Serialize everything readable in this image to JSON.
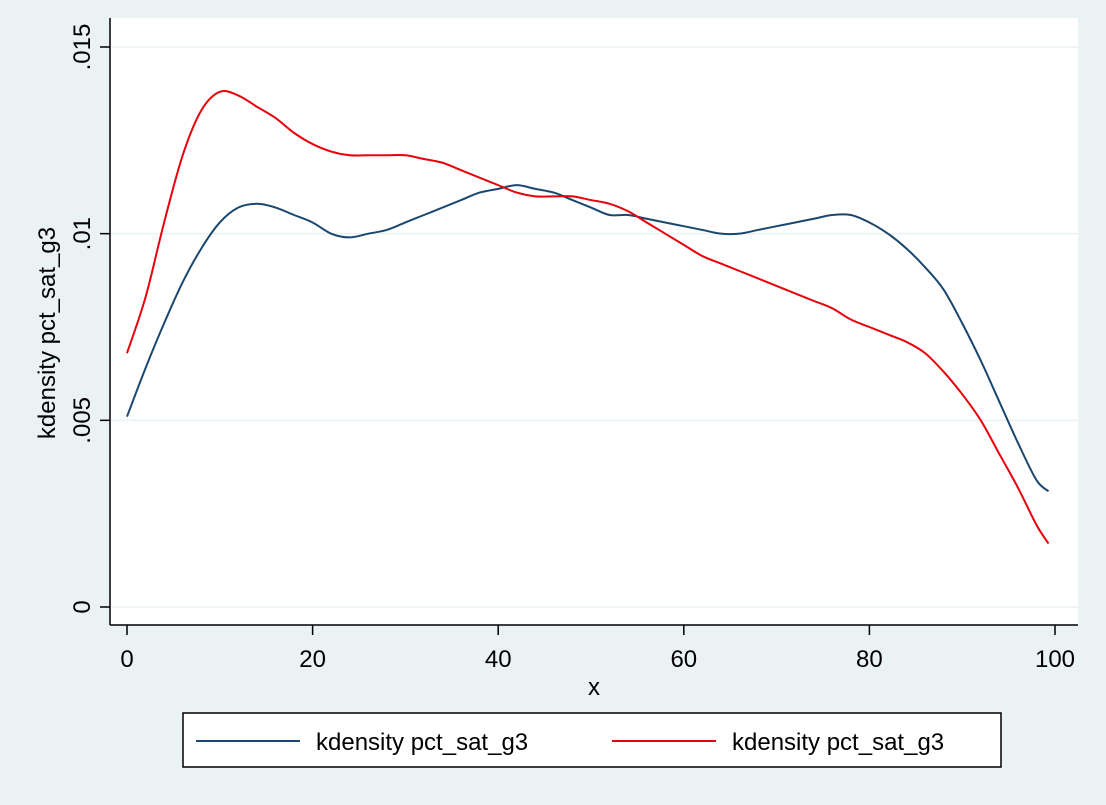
{
  "chart_data": {
    "type": "line",
    "title": "",
    "xlabel": "x",
    "ylabel": "kdensity pct_sat_g3",
    "xlim": [
      0,
      100
    ],
    "ylim": [
      0,
      0.015
    ],
    "x_ticks": [
      0,
      20,
      40,
      60,
      80,
      100
    ],
    "x_tick_labels": [
      "0",
      "20",
      "40",
      "60",
      "80",
      "100"
    ],
    "y_ticks": [
      0,
      0.005,
      0.01,
      0.015
    ],
    "y_tick_labels": [
      "0",
      ".005",
      ".01",
      ".015"
    ],
    "grid": "horizontal",
    "legend_position": "bottom",
    "series": [
      {
        "name": "kdensity pct_sat_g3",
        "color": "#1a476f",
        "points": [
          [
            0,
            0.0051
          ],
          [
            2,
            0.0064
          ],
          [
            4,
            0.0076
          ],
          [
            6,
            0.0087
          ],
          [
            8,
            0.0096
          ],
          [
            10,
            0.0103
          ],
          [
            12,
            0.0107
          ],
          [
            14,
            0.0108
          ],
          [
            16,
            0.0107
          ],
          [
            18,
            0.0105
          ],
          [
            20,
            0.0103
          ],
          [
            22,
            0.01
          ],
          [
            24,
            0.0099
          ],
          [
            26,
            0.01
          ],
          [
            28,
            0.0101
          ],
          [
            30,
            0.0103
          ],
          [
            32,
            0.0105
          ],
          [
            34,
            0.0107
          ],
          [
            36,
            0.0109
          ],
          [
            38,
            0.0111
          ],
          [
            40,
            0.0112
          ],
          [
            42,
            0.0113
          ],
          [
            44,
            0.0112
          ],
          [
            46,
            0.0111
          ],
          [
            48,
            0.0109
          ],
          [
            50,
            0.0107
          ],
          [
            52,
            0.0105
          ],
          [
            54,
            0.0105
          ],
          [
            56,
            0.0104
          ],
          [
            58,
            0.0103
          ],
          [
            60,
            0.0102
          ],
          [
            62,
            0.0101
          ],
          [
            64,
            0.01
          ],
          [
            66,
            0.01
          ],
          [
            68,
            0.0101
          ],
          [
            70,
            0.0102
          ],
          [
            72,
            0.0103
          ],
          [
            74,
            0.0104
          ],
          [
            76,
            0.0105
          ],
          [
            78,
            0.0105
          ],
          [
            80,
            0.0103
          ],
          [
            82,
            0.01
          ],
          [
            84,
            0.0096
          ],
          [
            86,
            0.0091
          ],
          [
            88,
            0.0085
          ],
          [
            90,
            0.0076
          ],
          [
            92,
            0.0066
          ],
          [
            94,
            0.0055
          ],
          [
            96,
            0.0044
          ],
          [
            98,
            0.0034
          ],
          [
            99.3,
            0.0031
          ]
        ]
      },
      {
        "name": "kdensity pct_sat_g3",
        "color": "#e8000b",
        "points": [
          [
            0,
            0.0068
          ],
          [
            2,
            0.0083
          ],
          [
            4,
            0.0103
          ],
          [
            6,
            0.0121
          ],
          [
            8,
            0.0133
          ],
          [
            10,
            0.0138
          ],
          [
            12,
            0.0137
          ],
          [
            14,
            0.0134
          ],
          [
            16,
            0.0131
          ],
          [
            18,
            0.0127
          ],
          [
            20,
            0.0124
          ],
          [
            22,
            0.0122
          ],
          [
            24,
            0.0121
          ],
          [
            26,
            0.0121
          ],
          [
            28,
            0.0121
          ],
          [
            30,
            0.0121
          ],
          [
            32,
            0.012
          ],
          [
            34,
            0.0119
          ],
          [
            36,
            0.0117
          ],
          [
            38,
            0.0115
          ],
          [
            40,
            0.0113
          ],
          [
            42,
            0.0111
          ],
          [
            44,
            0.011
          ],
          [
            46,
            0.011
          ],
          [
            48,
            0.011
          ],
          [
            50,
            0.0109
          ],
          [
            52,
            0.0108
          ],
          [
            54,
            0.0106
          ],
          [
            56,
            0.0103
          ],
          [
            58,
            0.01
          ],
          [
            60,
            0.0097
          ],
          [
            62,
            0.0094
          ],
          [
            64,
            0.0092
          ],
          [
            66,
            0.009
          ],
          [
            68,
            0.0088
          ],
          [
            70,
            0.0086
          ],
          [
            72,
            0.0084
          ],
          [
            74,
            0.0082
          ],
          [
            76,
            0.008
          ],
          [
            78,
            0.0077
          ],
          [
            80,
            0.0075
          ],
          [
            82,
            0.0073
          ],
          [
            84,
            0.0071
          ],
          [
            86,
            0.0068
          ],
          [
            88,
            0.0063
          ],
          [
            90,
            0.0057
          ],
          [
            92,
            0.005
          ],
          [
            94,
            0.0041
          ],
          [
            96,
            0.0032
          ],
          [
            98,
            0.0022
          ],
          [
            99.3,
            0.0017
          ]
        ]
      }
    ]
  }
}
